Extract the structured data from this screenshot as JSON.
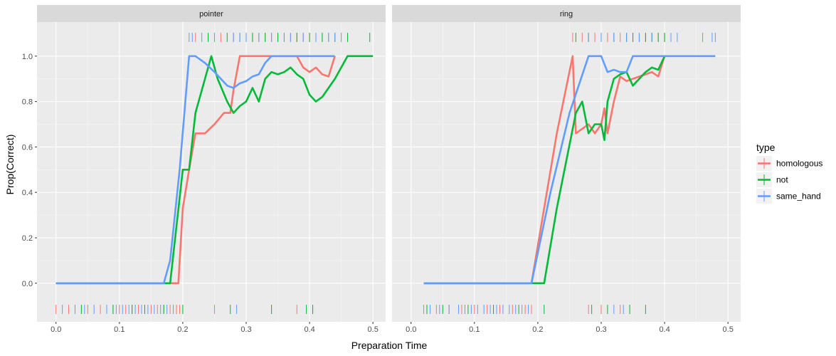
{
  "chart_data": {
    "type": "line",
    "xlabel": "Preparation Time",
    "ylabel": "Prop(Correct)",
    "xlim": [
      -0.03,
      0.52
    ],
    "ylim": [
      -0.17,
      1.15
    ],
    "x_ticks": [
      "0.0",
      "0.1",
      "0.2",
      "0.3",
      "0.4",
      "0.5"
    ],
    "y_ticks": [
      "0.0",
      "0.2",
      "0.4",
      "0.6",
      "0.8",
      "1.0"
    ],
    "grid": true,
    "legend": {
      "title": "type",
      "position": "right",
      "entries": [
        {
          "name": "homologous",
          "color": "#F8766D"
        },
        {
          "name": "not",
          "color": "#00BA38"
        },
        {
          "name": "same_hand",
          "color": "#619CFF"
        }
      ]
    },
    "facets": [
      {
        "title": "pointer",
        "series": [
          {
            "name": "homologous",
            "color": "#F8766D",
            "x": [
              0.0,
              0.18,
              0.193,
              0.2,
              0.21,
              0.22,
              0.235,
              0.25,
              0.265,
              0.275,
              0.28,
              0.29,
              0.3,
              0.31,
              0.32,
              0.33,
              0.34,
              0.35,
              0.36,
              0.37,
              0.38,
              0.39,
              0.4,
              0.41,
              0.42,
              0.43,
              0.44
            ],
            "y": [
              0.0,
              0.0,
              0.0,
              0.33,
              0.5,
              0.66,
              0.66,
              0.7,
              0.75,
              0.75,
              0.85,
              1.0,
              1.0,
              1.0,
              1.0,
              1.0,
              1.0,
              1.0,
              1.0,
              1.0,
              1.0,
              0.95,
              0.93,
              0.95,
              0.92,
              0.91,
              1.0
            ]
          },
          {
            "name": "not",
            "color": "#00BA38",
            "x": [
              0.0,
              0.18,
              0.19,
              0.2,
              0.21,
              0.22,
              0.235,
              0.245,
              0.255,
              0.27,
              0.28,
              0.29,
              0.3,
              0.31,
              0.32,
              0.33,
              0.34,
              0.35,
              0.36,
              0.37,
              0.38,
              0.39,
              0.4,
              0.41,
              0.42,
              0.43,
              0.44,
              0.46,
              0.48,
              0.5
            ],
            "y": [
              0.0,
              0.0,
              0.25,
              0.5,
              0.5,
              0.75,
              0.9,
              1.0,
              0.9,
              0.8,
              0.75,
              0.78,
              0.8,
              0.86,
              0.8,
              0.9,
              0.93,
              0.92,
              0.93,
              0.95,
              0.92,
              0.9,
              0.83,
              0.8,
              0.82,
              0.86,
              0.9,
              1.0,
              1.0,
              1.0
            ]
          },
          {
            "name": "same_hand",
            "color": "#619CFF",
            "x": [
              0.0,
              0.17,
              0.18,
              0.195,
              0.21,
              0.22,
              0.235,
              0.25,
              0.26,
              0.27,
              0.28,
              0.29,
              0.3,
              0.31,
              0.32,
              0.33,
              0.34,
              0.36,
              0.38,
              0.4,
              0.42,
              0.44
            ],
            "y": [
              0.0,
              0.0,
              0.1,
              0.5,
              1.0,
              1.0,
              0.97,
              0.93,
              0.9,
              0.87,
              0.86,
              0.88,
              0.89,
              0.91,
              0.92,
              0.97,
              1.0,
              1.0,
              1.0,
              1.0,
              1.0,
              1.0
            ]
          }
        ],
        "rugs": [
          {
            "name": "homologous",
            "color": "#F8766D",
            "bottom": [
              0.0,
              0.02,
              0.05,
              0.07,
              0.09,
              0.1,
              0.11,
              0.12,
              0.13,
              0.14,
              0.15,
              0.16,
              0.17,
              0.18,
              0.19,
              0.195,
              0.25,
              0.38
            ],
            "top": [
              0.22,
              0.26,
              0.28,
              0.3,
              0.31,
              0.32,
              0.33,
              0.34,
              0.35,
              0.36,
              0.37,
              0.38,
              0.39,
              0.4,
              0.41,
              0.42,
              0.43
            ]
          },
          {
            "name": "not",
            "color": "#00BA38",
            "bottom": [
              0.04,
              0.09,
              0.12,
              0.14,
              0.17,
              0.2,
              0.275,
              0.34,
              0.395,
              0.405
            ],
            "top": [
              0.24,
              0.27,
              0.29,
              0.31,
              0.33,
              0.35,
              0.36,
              0.38,
              0.4,
              0.42,
              0.44,
              0.46,
              0.495
            ]
          },
          {
            "name": "same_hand",
            "color": "#619CFF",
            "bottom": [
              0.01,
              0.03,
              0.045,
              0.06,
              0.08,
              0.095,
              0.105,
              0.115,
              0.125,
              0.135,
              0.145,
              0.155,
              0.165,
              0.175,
              0.185,
              0.285
            ],
            "top": [
              0.21,
              0.215,
              0.23,
              0.25,
              0.28,
              0.29,
              0.3,
              0.32,
              0.34,
              0.36,
              0.37,
              0.39,
              0.41,
              0.43,
              0.44,
              0.45
            ]
          }
        ]
      },
      {
        "title": "ring",
        "series": [
          {
            "name": "homologous",
            "color": "#F8766D",
            "x": [
              0.02,
              0.19,
              0.21,
              0.23,
              0.255,
              0.26,
              0.27,
              0.28,
              0.29,
              0.3,
              0.305,
              0.31,
              0.32,
              0.33,
              0.34,
              0.35,
              0.36,
              0.37,
              0.38,
              0.39,
              0.4
            ],
            "y": [
              0.0,
              0.0,
              0.33,
              0.66,
              1.0,
              0.66,
              0.68,
              0.7,
              0.66,
              0.7,
              0.77,
              0.66,
              0.8,
              0.91,
              0.89,
              0.9,
              0.91,
              0.92,
              0.93,
              0.91,
              1.0
            ]
          },
          {
            "name": "not",
            "color": "#00BA38",
            "x": [
              0.02,
              0.21,
              0.23,
              0.26,
              0.27,
              0.28,
              0.29,
              0.3,
              0.305,
              0.31,
              0.32,
              0.33,
              0.34,
              0.35,
              0.36,
              0.37,
              0.38,
              0.39,
              0.4
            ],
            "y": [
              0.0,
              0.0,
              0.33,
              0.75,
              0.8,
              0.66,
              0.7,
              0.7,
              0.63,
              0.8,
              0.9,
              0.92,
              0.93,
              0.87,
              0.9,
              0.93,
              0.95,
              0.94,
              1.0
            ]
          },
          {
            "name": "same_hand",
            "color": "#619CFF",
            "x": [
              0.02,
              0.19,
              0.22,
              0.25,
              0.28,
              0.3,
              0.31,
              0.32,
              0.33,
              0.34,
              0.35,
              0.37,
              0.39,
              0.42,
              0.45,
              0.48
            ],
            "y": [
              0.0,
              0.0,
              0.4,
              0.75,
              1.0,
              1.0,
              0.93,
              0.94,
              0.93,
              0.93,
              1.0,
              1.0,
              1.0,
              1.0,
              1.0,
              1.0
            ]
          }
        ],
        "rugs": [
          {
            "name": "homologous",
            "color": "#F8766D",
            "bottom": [
              0.02,
              0.04,
              0.06,
              0.08,
              0.1,
              0.12,
              0.14,
              0.16,
              0.18,
              0.19,
              0.28,
              0.3,
              0.33
            ],
            "top": [
              0.255,
              0.27,
              0.29,
              0.31,
              0.33,
              0.35,
              0.36,
              0.37,
              0.38,
              0.39,
              0.4
            ]
          },
          {
            "name": "not",
            "color": "#00BA38",
            "bottom": [
              0.025,
              0.05,
              0.09,
              0.13,
              0.17,
              0.21,
              0.285,
              0.31,
              0.345,
              0.37
            ],
            "top": [
              0.26,
              0.28,
              0.3,
              0.32,
              0.34,
              0.35,
              0.36,
              0.37,
              0.38,
              0.39,
              0.4,
              0.41
            ]
          },
          {
            "name": "same_hand",
            "color": "#619CFF",
            "bottom": [
              0.03,
              0.045,
              0.06,
              0.075,
              0.085,
              0.095,
              0.105,
              0.115,
              0.125,
              0.135,
              0.145,
              0.155,
              0.165,
              0.175,
              0.185,
              0.32,
              0.335
            ],
            "top": [
              0.28,
              0.3,
              0.32,
              0.34,
              0.36,
              0.38,
              0.41,
              0.42,
              0.46,
              0.475,
              0.48
            ]
          }
        ]
      }
    ]
  }
}
